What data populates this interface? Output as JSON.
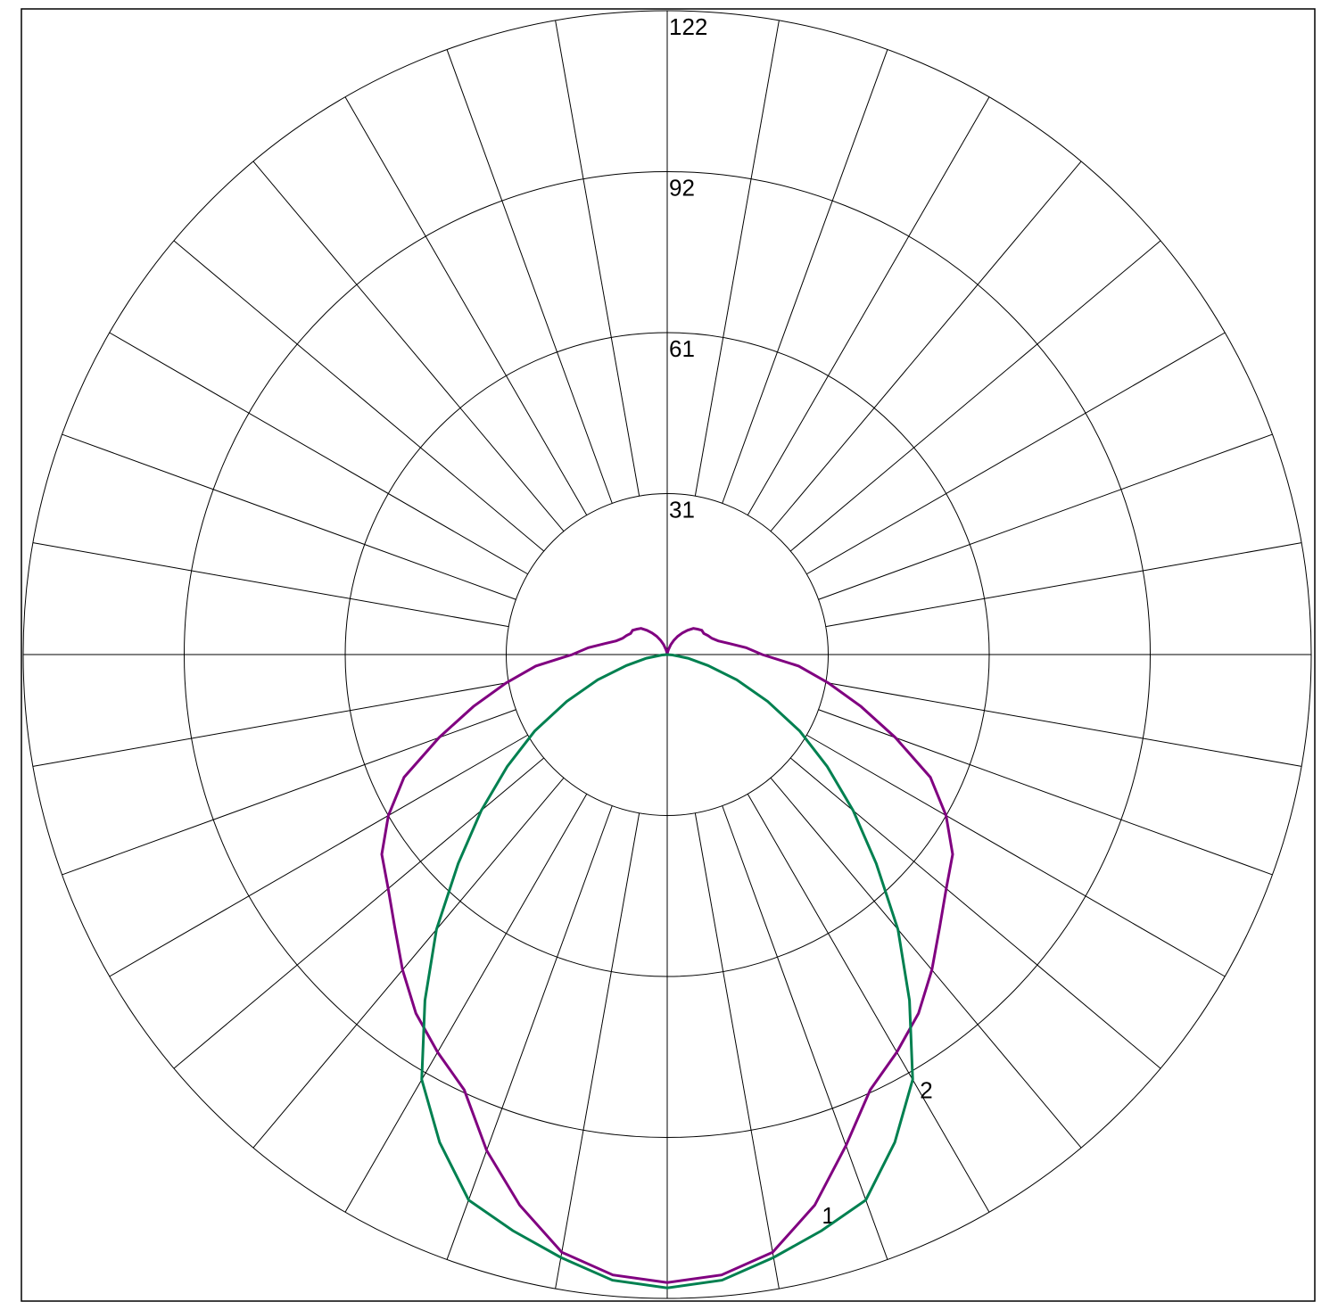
{
  "chart_data": {
    "type": "polar",
    "x": [
      -180,
      -175,
      -170,
      -165,
      -160,
      -155,
      -150,
      -145,
      -140,
      -135,
      -130,
      -125,
      -120,
      -115,
      -110,
      -105,
      -100,
      -95,
      -90,
      -85,
      -80,
      -75,
      -70,
      -65,
      -60,
      -55,
      -50,
      -45,
      -40,
      -35,
      -30,
      -25,
      -20,
      -15,
      -10,
      -5,
      0,
      5,
      10,
      15,
      20,
      25,
      30,
      35,
      40,
      45,
      50,
      55,
      60,
      65,
      70,
      75,
      80,
      85,
      90,
      95,
      100,
      105,
      110,
      115,
      120,
      125,
      130,
      135,
      140,
      145,
      150,
      155,
      160,
      165,
      170,
      175,
      180
    ],
    "series": [
      {
        "name": "1",
        "color": "#800080",
        "values": [
          0,
          0,
          0.5,
          1,
          2,
          3,
          4,
          5,
          6,
          7,
          7.5,
          8,
          8,
          8.5,
          9,
          10,
          12,
          15,
          18,
          25,
          31,
          38,
          46,
          55,
          61,
          66,
          69,
          73,
          78,
          83,
          87,
          91,
          100,
          108,
          115,
          118,
          119,
          118,
          115,
          108,
          99,
          91,
          87,
          83,
          78,
          73,
          69,
          66,
          61,
          55,
          46,
          38,
          31,
          25,
          18,
          15,
          12,
          10,
          9,
          8.5,
          8,
          8,
          7.5,
          7,
          6,
          5,
          4,
          3,
          2,
          1,
          0.5,
          0,
          0
        ]
      },
      {
        "name": "2",
        "color": "#008050",
        "values": [
          null,
          null,
          null,
          null,
          null,
          null,
          null,
          null,
          null,
          null,
          null,
          null,
          null,
          null,
          null,
          null,
          null,
          null,
          0,
          1,
          4,
          8,
          14,
          21,
          29,
          37,
          46,
          56,
          68,
          80,
          93,
          102,
          110,
          113,
          116,
          119,
          120,
          119,
          116,
          113,
          110,
          102,
          93,
          80,
          68,
          56,
          46,
          37,
          29,
          21,
          14,
          8,
          4,
          1,
          0,
          null,
          null,
          null,
          null,
          null,
          null,
          null,
          null,
          null,
          null,
          null,
          null,
          null,
          null,
          null,
          null,
          null,
          null
        ]
      }
    ],
    "rlim": [
      0,
      122
    ],
    "rticks": [
      {
        "value": 30.5,
        "label": "31"
      },
      61,
      {
        "value": 91.5,
        "label": "92"
      },
      122
    ],
    "grid": true
  }
}
